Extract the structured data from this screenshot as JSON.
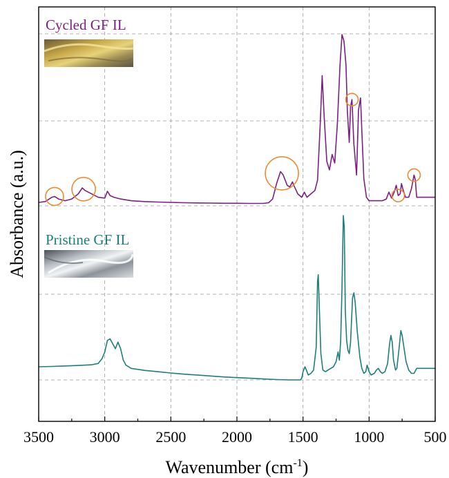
{
  "chart_data": {
    "type": "line",
    "xlabel": "Wavenumber (cm",
    "xlabel_sup": "-1",
    "xlabel_tail": ")",
    "ylabel": "Absorbance (a.u.)",
    "xlim": [
      3500,
      500
    ],
    "x_reversed": true,
    "x_ticks": [
      3500,
      3000,
      2500,
      2000,
      1500,
      1000,
      500
    ],
    "y_ticks_shown": false,
    "grid": true,
    "series": [
      {
        "name": "Cycled GF IL",
        "color": "#7b1f82",
        "points": [
          [
            3500,
            0.02
          ],
          [
            3450,
            0.025
          ],
          [
            3400,
            0.05
          ],
          [
            3380,
            0.055
          ],
          [
            3350,
            0.04
          ],
          [
            3300,
            0.03
          ],
          [
            3250,
            0.04
          ],
          [
            3200,
            0.07
          ],
          [
            3170,
            0.105
          ],
          [
            3150,
            0.09
          ],
          [
            3100,
            0.07
          ],
          [
            3050,
            0.05
          ],
          [
            3000,
            0.045
          ],
          [
            2980,
            0.085
          ],
          [
            2960,
            0.06
          ],
          [
            2930,
            0.05
          ],
          [
            2880,
            0.04
          ],
          [
            2800,
            0.03
          ],
          [
            2700,
            0.025
          ],
          [
            2600,
            0.022
          ],
          [
            2500,
            0.02
          ],
          [
            2400,
            0.018
          ],
          [
            2300,
            0.017
          ],
          [
            2200,
            0.016
          ],
          [
            2100,
            0.015
          ],
          [
            2000,
            0.015
          ],
          [
            1900,
            0.014
          ],
          [
            1800,
            0.014
          ],
          [
            1760,
            0.018
          ],
          [
            1730,
            0.04
          ],
          [
            1700,
            0.13
          ],
          [
            1670,
            0.2
          ],
          [
            1650,
            0.18
          ],
          [
            1620,
            0.12
          ],
          [
            1600,
            0.11
          ],
          [
            1580,
            0.14
          ],
          [
            1570,
            0.12
          ],
          [
            1540,
            0.07
          ],
          [
            1510,
            0.05
          ],
          [
            1490,
            0.08
          ],
          [
            1470,
            0.05
          ],
          [
            1440,
            0.07
          ],
          [
            1410,
            0.09
          ],
          [
            1390,
            0.15
          ],
          [
            1370,
            0.47
          ],
          [
            1355,
            0.76
          ],
          [
            1340,
            0.52
          ],
          [
            1320,
            0.26
          ],
          [
            1300,
            0.21
          ],
          [
            1280,
            0.3
          ],
          [
            1260,
            0.25
          ],
          [
            1240,
            0.48
          ],
          [
            1220,
            0.82
          ],
          [
            1205,
            1.0
          ],
          [
            1190,
            0.96
          ],
          [
            1175,
            0.82
          ],
          [
            1165,
            0.56
          ],
          [
            1150,
            0.37
          ],
          [
            1140,
            0.58
          ],
          [
            1130,
            0.62
          ],
          [
            1115,
            0.36
          ],
          [
            1095,
            0.18
          ],
          [
            1080,
            0.56
          ],
          [
            1065,
            0.63
          ],
          [
            1055,
            0.44
          ],
          [
            1040,
            0.16
          ],
          [
            1020,
            0.05
          ],
          [
            1000,
            0.03
          ],
          [
            980,
            0.03
          ],
          [
            950,
            0.03
          ],
          [
            930,
            0.03
          ],
          [
            900,
            0.03
          ],
          [
            870,
            0.04
          ],
          [
            850,
            0.08
          ],
          [
            830,
            0.045
          ],
          [
            810,
            0.08
          ],
          [
            795,
            0.12
          ],
          [
            780,
            0.06
          ],
          [
            765,
            0.07
          ],
          [
            755,
            0.13
          ],
          [
            745,
            0.1
          ],
          [
            725,
            0.05
          ],
          [
            700,
            0.05
          ],
          [
            680,
            0.1
          ],
          [
            660,
            0.18
          ],
          [
            650,
            0.15
          ],
          [
            640,
            0.05
          ],
          [
            500,
            0.05
          ]
        ]
      },
      {
        "name": "Pristine GF IL",
        "color": "#1c7f78",
        "points": [
          [
            3500,
            0.08
          ],
          [
            3400,
            0.082
          ],
          [
            3300,
            0.085
          ],
          [
            3200,
            0.088
          ],
          [
            3100,
            0.092
          ],
          [
            3050,
            0.1
          ],
          [
            3020,
            0.13
          ],
          [
            3000,
            0.17
          ],
          [
            2980,
            0.24
          ],
          [
            2960,
            0.25
          ],
          [
            2940,
            0.22
          ],
          [
            2920,
            0.19
          ],
          [
            2900,
            0.23
          ],
          [
            2880,
            0.19
          ],
          [
            2860,
            0.12
          ],
          [
            2840,
            0.09
          ],
          [
            2800,
            0.07
          ],
          [
            2700,
            0.058
          ],
          [
            2600,
            0.05
          ],
          [
            2500,
            0.042
          ],
          [
            2400,
            0.035
          ],
          [
            2300,
            0.03
          ],
          [
            2200,
            0.024
          ],
          [
            2100,
            0.018
          ],
          [
            2000,
            0.014
          ],
          [
            1900,
            0.01
          ],
          [
            1800,
            0.006
          ],
          [
            1700,
            0.002
          ],
          [
            1600,
            0.0
          ],
          [
            1520,
            0.0
          ],
          [
            1510,
            0.01
          ],
          [
            1500,
            0.05
          ],
          [
            1485,
            0.08
          ],
          [
            1475,
            0.06
          ],
          [
            1460,
            0.03
          ],
          [
            1440,
            0.04
          ],
          [
            1420,
            0.06
          ],
          [
            1400,
            0.2
          ],
          [
            1390,
            0.6
          ],
          [
            1385,
            0.64
          ],
          [
            1375,
            0.4
          ],
          [
            1365,
            0.16
          ],
          [
            1350,
            0.06
          ],
          [
            1330,
            0.05
          ],
          [
            1310,
            0.06
          ],
          [
            1290,
            0.07
          ],
          [
            1270,
            0.08
          ],
          [
            1250,
            0.11
          ],
          [
            1235,
            0.17
          ],
          [
            1225,
            0.12
          ],
          [
            1215,
            0.24
          ],
          [
            1205,
            0.56
          ],
          [
            1195,
            1.0
          ],
          [
            1188,
            0.93
          ],
          [
            1180,
            0.42
          ],
          [
            1170,
            0.24
          ],
          [
            1160,
            0.18
          ],
          [
            1150,
            0.16
          ],
          [
            1140,
            0.23
          ],
          [
            1125,
            0.5
          ],
          [
            1115,
            0.53
          ],
          [
            1105,
            0.47
          ],
          [
            1090,
            0.3
          ],
          [
            1070,
            0.14
          ],
          [
            1055,
            0.07
          ],
          [
            1040,
            0.04
          ],
          [
            1025,
            0.05
          ],
          [
            1015,
            0.09
          ],
          [
            1000,
            0.05
          ],
          [
            985,
            0.03
          ],
          [
            960,
            0.04
          ],
          [
            945,
            0.06
          ],
          [
            930,
            0.07
          ],
          [
            915,
            0.05
          ],
          [
            900,
            0.04
          ],
          [
            880,
            0.05
          ],
          [
            860,
            0.1
          ],
          [
            845,
            0.22
          ],
          [
            835,
            0.27
          ],
          [
            825,
            0.23
          ],
          [
            815,
            0.12
          ],
          [
            800,
            0.06
          ],
          [
            790,
            0.07
          ],
          [
            775,
            0.18
          ],
          [
            760,
            0.3
          ],
          [
            750,
            0.27
          ],
          [
            735,
            0.19
          ],
          [
            720,
            0.11
          ],
          [
            700,
            0.06
          ],
          [
            680,
            0.04
          ],
          [
            660,
            0.04
          ],
          [
            640,
            0.07
          ],
          [
            620,
            0.07
          ],
          [
            500,
            0.07
          ]
        ]
      }
    ]
  },
  "annotations": {
    "circled_peaks_cycled": [
      3380,
      3160,
      1660,
      1130,
      780,
      660
    ],
    "circle_color": "#f08a2c"
  },
  "insets": {
    "cycled_photo": "photo-yellow-residue",
    "pristine_photo": "photo-clear-liquid"
  }
}
